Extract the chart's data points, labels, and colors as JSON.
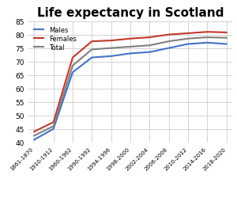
{
  "title": "Life expectancy in Scotland",
  "x_labels": [
    "1861-1870",
    "1910-1912",
    "1960-1962",
    "1990-1992",
    "1994-1996",
    "1998-2000",
    "2002-2004",
    "2006-2008",
    "2010-2012",
    "2014-2016",
    "2018-2020"
  ],
  "males": [
    41.0,
    45.0,
    66.0,
    71.5,
    72.0,
    73.0,
    73.5,
    75.0,
    76.5,
    77.0,
    76.5
  ],
  "females": [
    44.0,
    47.5,
    71.5,
    77.5,
    77.8,
    78.5,
    79.0,
    80.0,
    80.5,
    81.0,
    80.8
  ],
  "total": [
    42.5,
    46.0,
    68.5,
    74.5,
    75.0,
    75.5,
    76.0,
    77.5,
    78.5,
    79.0,
    78.8
  ],
  "males_color": "#4472c4",
  "females_color": "#c0392b",
  "total_color": "#808080",
  "ylim": [
    40,
    85
  ],
  "yticks": [
    40,
    45,
    50,
    55,
    60,
    65,
    70,
    75,
    80,
    85
  ],
  "background_color": "#ffffff",
  "grid_color": "#cccccc",
  "title_fontsize": 11
}
